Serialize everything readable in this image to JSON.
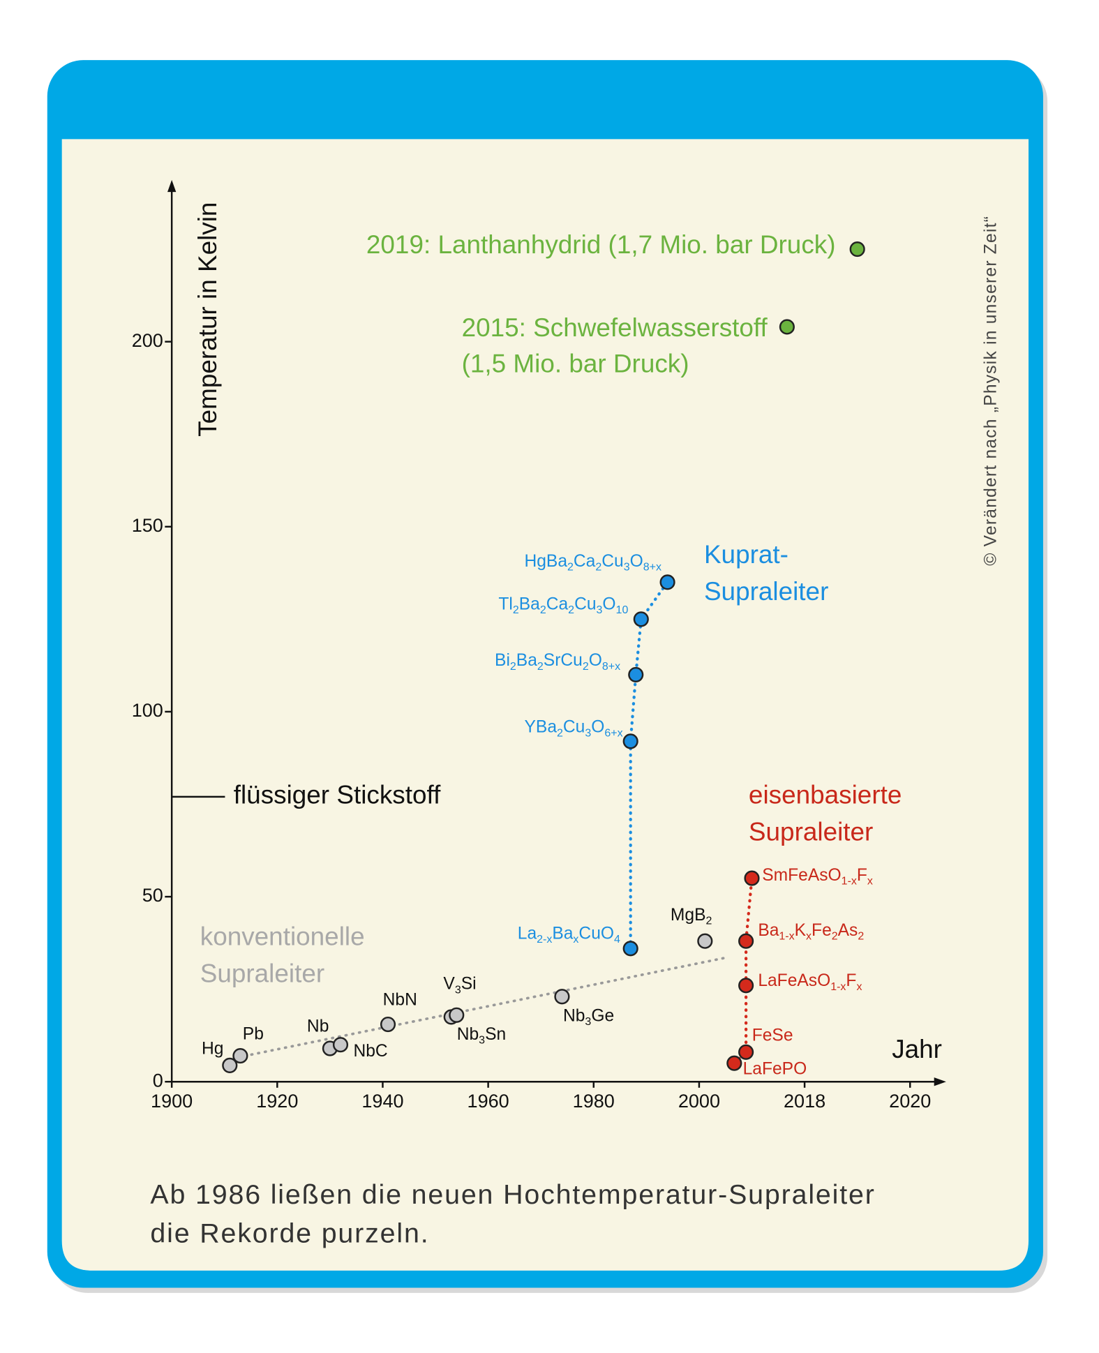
{
  "chart_data": {
    "type": "scatter",
    "y_label": "Temperatur in Kelvin",
    "x_label": "Jahr",
    "xlim": [
      1900,
      2020
    ],
    "xticks": [
      1900,
      1920,
      1940,
      1960,
      1980,
      2000,
      2018,
      2020
    ],
    "ylim": [
      0,
      240
    ],
    "yticks": [
      0,
      50,
      100,
      150,
      200
    ],
    "reference_line": {
      "value": 77,
      "label": "flüssiger Stickstoff"
    },
    "series": [
      {
        "name": [
          "konventionelle",
          "Supraleiter"
        ],
        "color": "#c8c8c8",
        "label_color": "#111111",
        "name_color": "#a8a8a8",
        "x": [
          1911,
          1913,
          1930,
          1932,
          1941,
          1953,
          1954,
          1974,
          2001
        ],
        "values": [
          4.4,
          7,
          9,
          10,
          15.5,
          17.5,
          18,
          23,
          38
        ],
        "labels": [
          [
            "Hg"
          ],
          [
            "Pb"
          ],
          [
            "Nb"
          ],
          [
            "NbC"
          ],
          [
            "NbN"
          ],
          [
            "V",
            "3",
            "Si"
          ],
          [
            "Nb",
            "3",
            "Sn"
          ],
          [
            "Nb",
            "3",
            "Ge"
          ],
          [
            "MgB",
            "2"
          ]
        ]
      },
      {
        "name": [
          "Kuprat-",
          "Supraleiter"
        ],
        "color": "#1b8ee0",
        "label_color": "#1b8ee0",
        "name_color": "#1b8ee0",
        "connect": true,
        "x": [
          1987,
          1987,
          1988,
          1989,
          1994
        ],
        "values": [
          36,
          92,
          110,
          125,
          135
        ],
        "labels": [
          [
            "La",
            "2-x",
            "Ba",
            "x",
            "CuO",
            "4"
          ],
          [
            "YBa",
            "2",
            "Cu",
            "3",
            "O",
            "6+x"
          ],
          [
            "Bi",
            "2",
            "Ba",
            "2",
            "SrCu",
            "2",
            "O",
            "8+x"
          ],
          [
            "Tl",
            "2",
            "Ba",
            "2",
            "Ca",
            "2",
            "Cu",
            "3",
            "O",
            "10"
          ],
          [
            "HgBa",
            "2",
            "Ca",
            "2",
            "Cu",
            "3",
            "O",
            "8+x"
          ]
        ]
      },
      {
        "name": [
          "eisenbasierte",
          "Supraleiter"
        ],
        "color": "#d42a1c",
        "label_color": "#c8281a",
        "name_color": "#c8281a",
        "connect": true,
        "x": [
          2006,
          2008,
          2008,
          2008,
          2009
        ],
        "values": [
          5,
          8,
          26,
          38,
          55
        ],
        "labels": [
          [
            "LaFePO"
          ],
          [
            "FeSe"
          ],
          [
            "LaFeAsO",
            "1-x",
            "F",
            "x"
          ],
          [
            "Ba",
            "1-x",
            "K",
            "x",
            "Fe",
            "2",
            "As",
            "2"
          ],
          [
            "SmFeAsO",
            "1-x",
            "F",
            "x"
          ]
        ]
      },
      {
        "color": "#6bb33f",
        "label_color": "#6bb33f",
        "x": [
          2015,
          2019
        ],
        "values": [
          204,
          225
        ],
        "notes": [
          [
            "2015: Schwefelwasserstoff",
            "(1,5 Mio. bar Druck)"
          ],
          [
            "2019: Lanthanhydrid (1,7 Mio. bar Druck)"
          ]
        ]
      }
    ],
    "credit": "© Verändert nach „Physik in unserer Zeit“",
    "caption": [
      "Ab 1986 ließen die neuen Hochtemperatur-Supraleiter",
      "die Rekorde purzeln."
    ]
  }
}
